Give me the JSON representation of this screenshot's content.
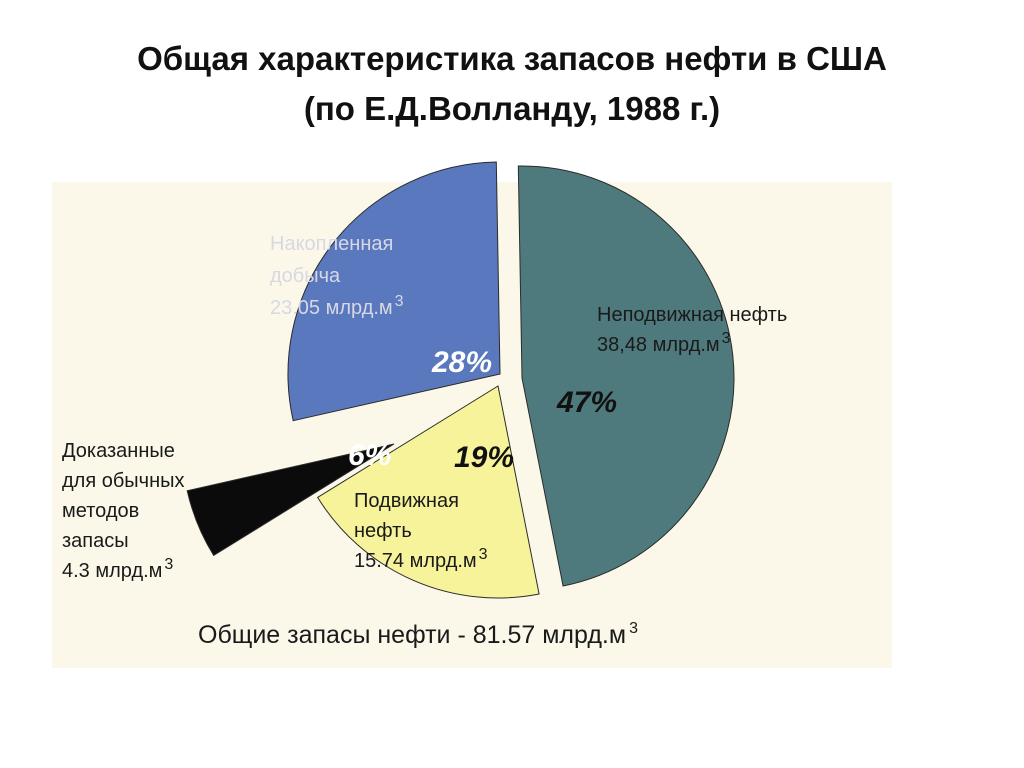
{
  "page": {
    "title_line1": "Общая характеристика запасов нефти в США",
    "title_line2": "(по Е.Д.Волланду, 1988 г.)"
  },
  "chart_data": {
    "type": "pie",
    "total_label": "Общие запасы нефти - 81.57 млрд.м",
    "total_sup": "3",
    "slices": [
      {
        "name": "immobile",
        "lines": [
          "Неподвижная нефть",
          "38,48 млрд.м"
        ],
        "sup": "3",
        "value": 38.48,
        "percent": 47,
        "percent_label": "47%",
        "color": "#4f7a7d",
        "pct_color": "#111111",
        "exploded": false
      },
      {
        "name": "mobile",
        "lines": [
          "Подвижная",
          "нефть",
          "15.74 млрд.м"
        ],
        "sup": "3",
        "value": 15.74,
        "percent": 19,
        "percent_label": "19%",
        "color": "#f7f39a",
        "pct_color": "#111111",
        "exploded": true
      },
      {
        "name": "proven",
        "lines": [
          "Доказанные",
          "для обычных",
          "методов",
          "запасы",
          "4.3 млрд.м"
        ],
        "sup": "3",
        "value": 4.3,
        "percent": 6,
        "percent_label": "6%",
        "color": "#0b0b0b",
        "pct_color": "#ffffff",
        "exploded": true
      },
      {
        "name": "cumulative",
        "lines": [
          "Накопленная",
          "добыча",
          "23.05 млрд.м"
        ],
        "sup": "3",
        "value": 23.05,
        "percent": 28,
        "percent_label": "28%",
        "color": "#5a78bd",
        "pct_color": "#ffffff",
        "exploded": true
      }
    ]
  }
}
